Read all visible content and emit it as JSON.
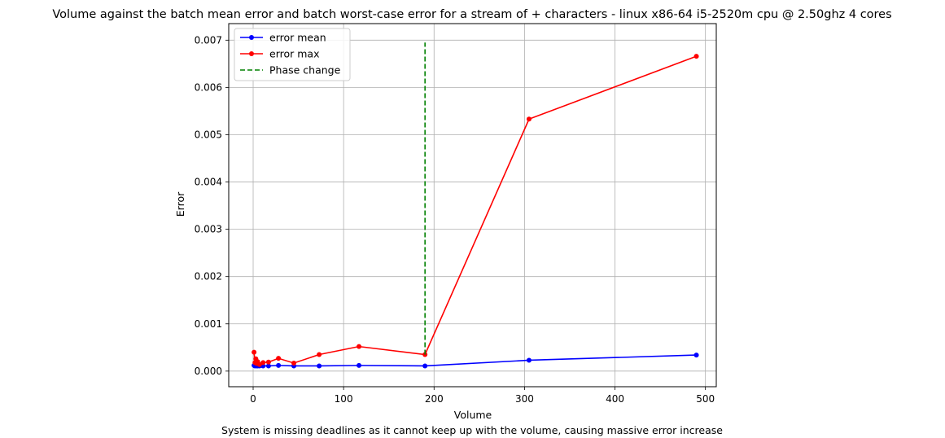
{
  "chart_data": {
    "type": "line",
    "title": "Volume against the batch mean error and batch worst-case error for a stream of + characters - linux x86-64 i5-2520m cpu @ 2.50ghz 4 cores",
    "xlabel": "Volume",
    "ylabel": "Error",
    "caption": "System is missing deadlines as it cannot keep up with the volume, causing massive error increase",
    "xlim": [
      -27,
      512
    ],
    "ylim": [
      -0.00033,
      0.00735
    ],
    "grid": true,
    "legend_position": "top-left",
    "xticks": [
      0,
      100,
      200,
      300,
      400,
      500
    ],
    "xtick_labels": [
      "0",
      "100",
      "200",
      "300",
      "400",
      "500"
    ],
    "yticks": [
      0.0,
      0.001,
      0.002,
      0.003,
      0.004,
      0.005,
      0.006,
      0.007
    ],
    "ytick_labels": [
      "0.000",
      "0.001",
      "0.002",
      "0.003",
      "0.004",
      "0.005",
      "0.006",
      "0.007"
    ],
    "series": [
      {
        "name": "error mean",
        "color": "#0000ff",
        "style": "solid-marker",
        "x": [
          1,
          2,
          3,
          4,
          5,
          7,
          11,
          17,
          28,
          45,
          73,
          117,
          190,
          305,
          490
        ],
        "y": [
          0.00012,
          0.00011,
          0.00012,
          0.00011,
          0.00011,
          0.00011,
          0.00011,
          0.00011,
          0.00012,
          0.00011,
          0.00011,
          0.00012,
          0.00011,
          0.00023,
          0.00034
        ]
      },
      {
        "name": "error max",
        "color": "#ff0000",
        "style": "solid-marker",
        "x": [
          1,
          2,
          3,
          4,
          5,
          7,
          11,
          17,
          28,
          45,
          73,
          117,
          190,
          305,
          490
        ],
        "y": [
          0.0004,
          0.00018,
          0.00026,
          0.00016,
          0.0002,
          0.00014,
          0.00018,
          0.00019,
          0.00027,
          0.00017,
          0.00035,
          0.00052,
          0.00035,
          0.00533,
          0.00666
        ]
      },
      {
        "name": "Phase change",
        "color": "#008000",
        "style": "dashed",
        "x": [
          190,
          190
        ],
        "y": [
          0.00035,
          0.00695
        ]
      }
    ]
  }
}
